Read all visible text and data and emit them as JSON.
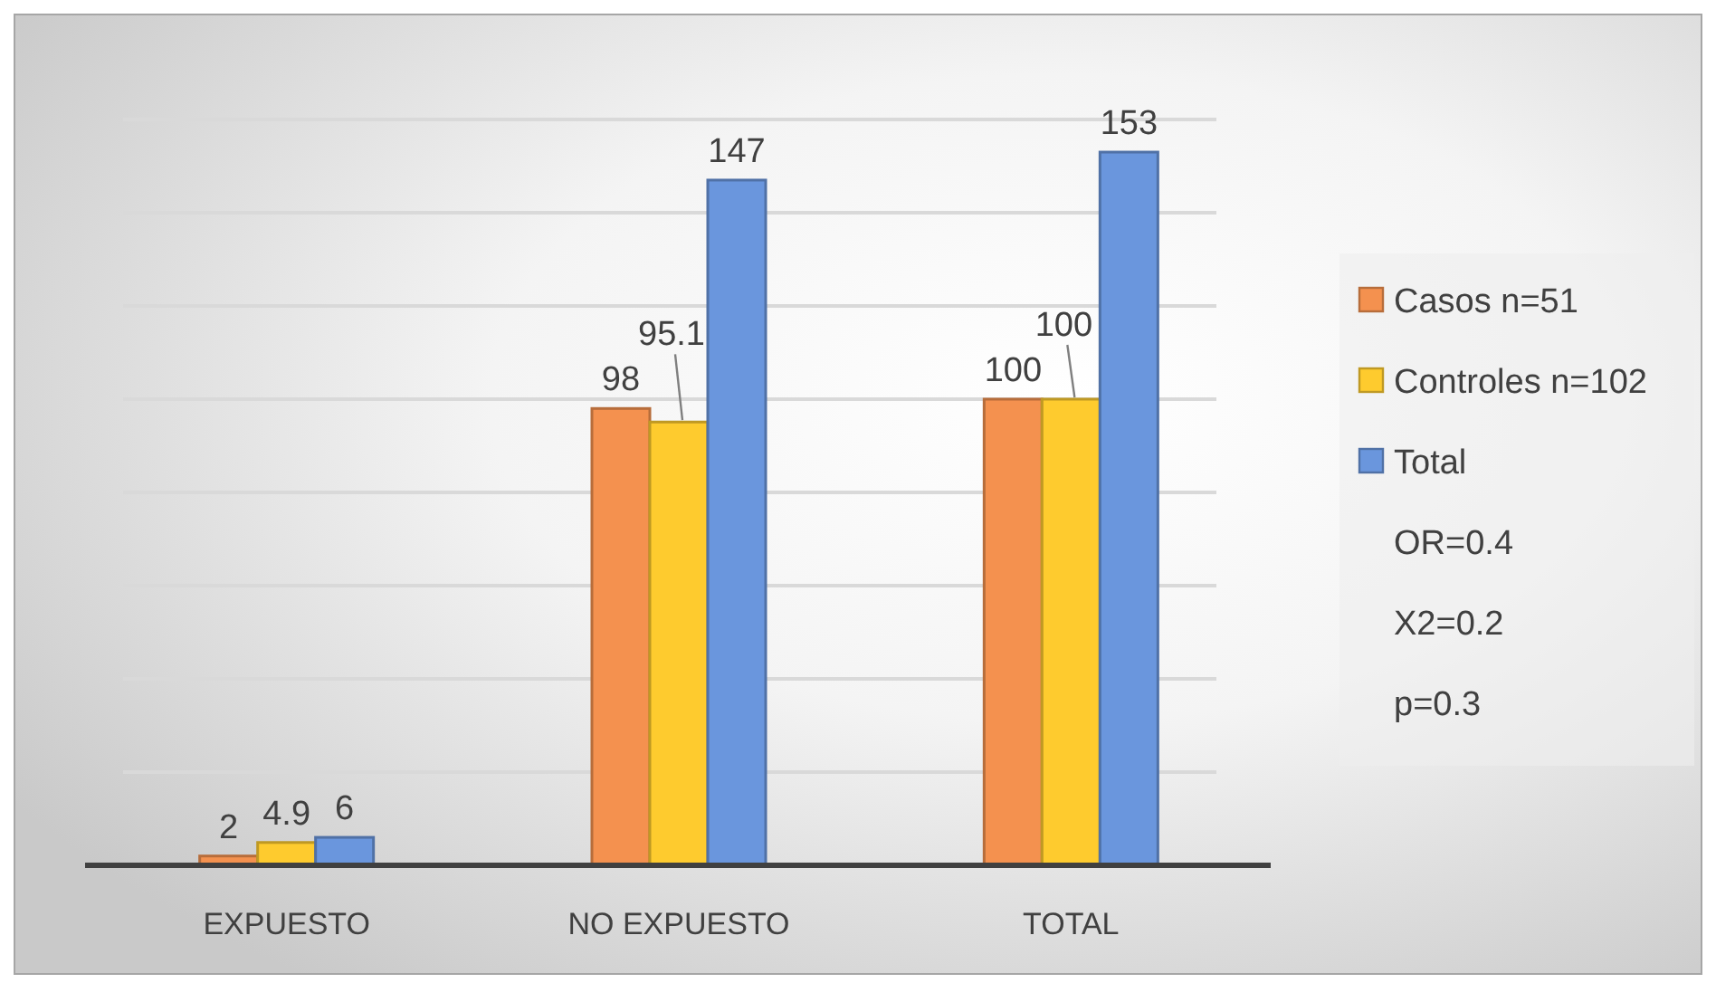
{
  "chart_data": {
    "type": "bar",
    "categories": [
      "EXPUESTO",
      "NO EXPUESTO",
      "TOTAL"
    ],
    "series": [
      {
        "name": "Casos n=51",
        "color": "#f4914f",
        "values": [
          2,
          98,
          100
        ]
      },
      {
        "name": "Controles n=102",
        "color": "#fecb2e",
        "values": [
          4.9,
          95.1,
          100
        ]
      },
      {
        "name": "Total",
        "color": "#6a96dd",
        "values": [
          6,
          147,
          153
        ]
      }
    ],
    "ylim": [
      0,
      160
    ],
    "yticks": [
      {
        "value": 0,
        "label": null
      },
      {
        "value": 20,
        "label": null
      },
      {
        "value": 40,
        "label": null
      },
      {
        "value": 60,
        "label": null
      },
      {
        "value": 80,
        "label": null
      },
      {
        "value": 100,
        "label": null
      },
      {
        "value": 120,
        "label": null
      },
      {
        "value": 140,
        "label": null
      },
      {
        "value": 160,
        "label": null
      }
    ],
    "tick_labels": "x",
    "grid": "y",
    "legend": "right",
    "data_labels": true,
    "annotations": [
      "OR=0.4",
      "X2=0.2",
      "p=0.3"
    ]
  }
}
